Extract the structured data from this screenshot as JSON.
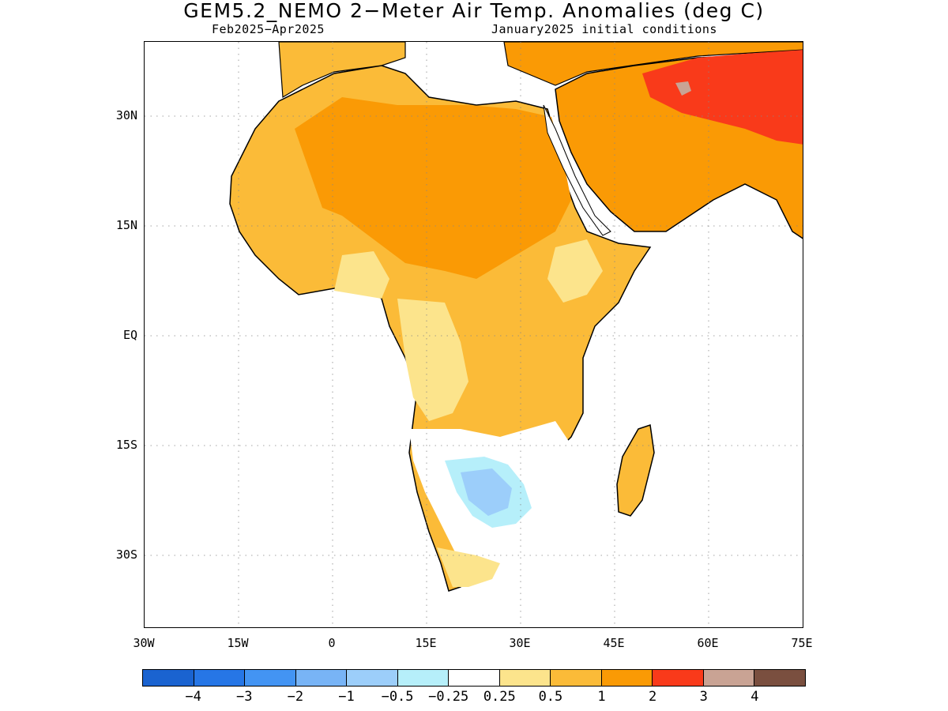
{
  "title": "GEM5.2_NEMO 2−Meter Air Temp. Anomalies (deg C)",
  "subtitle_left": "Feb2025−Apr2025",
  "subtitle_right": "January2025 initial conditions",
  "axes": {
    "lat_labels": [
      "30N",
      "15N",
      "EQ",
      "15S",
      "30S"
    ],
    "lon_labels": [
      "30W",
      "15W",
      "0",
      "15E",
      "30E",
      "45E",
      "60E",
      "75E"
    ],
    "lat_range": [
      -40,
      40
    ],
    "lon_range": [
      -30,
      75
    ],
    "grid": "dotted"
  },
  "colorbar": {
    "labels": [
      "−4",
      "−3",
      "−2",
      "−1",
      "−0.5",
      "−0.25",
      "0.25",
      "0.5",
      "1",
      "2",
      "3",
      "4"
    ],
    "colors": [
      "#1a63d0",
      "#2676e6",
      "#4394f3",
      "#78b4f6",
      "#9ccefa",
      "#b6effa",
      "#ffffff",
      "#fce48c",
      "#fbbb38",
      "#fa9a05",
      "#f93a1a",
      "#c9a394",
      "#7a4f3f"
    ]
  }
}
